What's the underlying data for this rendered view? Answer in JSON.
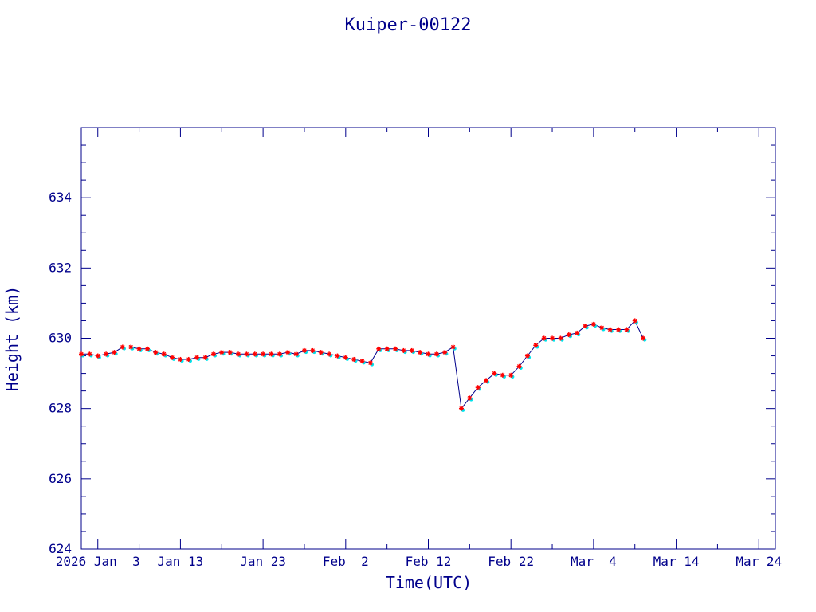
{
  "chart_data": {
    "type": "line",
    "title": "Kuiper-00122",
    "xlabel": "Time(UTC)",
    "ylabel": "Height (km)",
    "ylim": [
      624,
      636
    ],
    "yticks": [
      624,
      626,
      628,
      630,
      632,
      634
    ],
    "xlim": [
      "2026-01-01",
      "2026-03-26"
    ],
    "xtick_values": [
      "2026-01-03",
      "2026-01-13",
      "2026-01-23",
      "2026-02-02",
      "2026-02-12",
      "2026-02-22",
      "2026-03-04",
      "2026-03-14",
      "2026-03-24"
    ],
    "xtick_labels": [
      "2026 Jan  3",
      "Jan 13",
      "Jan 23",
      "Feb  2",
      "Feb 12",
      "Feb 22",
      "Mar  4",
      "Mar 14",
      "Mar 24"
    ],
    "colors": {
      "axis": "#00008b",
      "line": "#00008b",
      "marker": "#ff0000",
      "secondary_marker": "#00e5ee"
    },
    "series": [
      {
        "x": [
          "2026-01-01",
          "2026-01-02",
          "2026-01-03",
          "2026-01-04",
          "2026-01-05",
          "2026-01-06",
          "2026-01-07",
          "2026-01-08",
          "2026-01-09",
          "2026-01-10",
          "2026-01-11",
          "2026-01-12",
          "2026-01-13",
          "2026-01-14",
          "2026-01-15",
          "2026-01-16",
          "2026-01-17",
          "2026-01-18",
          "2026-01-19",
          "2026-01-20",
          "2026-01-21",
          "2026-01-22",
          "2026-01-23",
          "2026-01-24",
          "2026-01-25",
          "2026-01-26",
          "2026-01-27",
          "2026-01-28",
          "2026-01-29",
          "2026-01-30",
          "2026-01-31",
          "2026-02-01",
          "2026-02-02",
          "2026-02-03",
          "2026-02-04",
          "2026-02-05",
          "2026-02-06",
          "2026-02-07",
          "2026-02-08",
          "2026-02-09",
          "2026-02-10",
          "2026-02-11",
          "2026-02-12",
          "2026-02-13",
          "2026-02-14",
          "2026-02-15",
          "2026-02-16",
          "2026-02-17",
          "2026-02-18",
          "2026-02-19",
          "2026-02-20",
          "2026-02-21",
          "2026-02-22",
          "2026-02-23",
          "2026-02-24",
          "2026-02-25",
          "2026-02-26",
          "2026-02-27",
          "2026-02-28",
          "2026-03-01",
          "2026-03-02",
          "2026-03-03",
          "2026-03-04",
          "2026-03-05",
          "2026-03-06",
          "2026-03-07",
          "2026-03-08",
          "2026-03-09",
          "2026-03-10"
        ],
        "y": [
          629.55,
          629.55,
          629.5,
          629.55,
          629.6,
          629.75,
          629.75,
          629.7,
          629.7,
          629.6,
          629.55,
          629.45,
          629.4,
          629.4,
          629.45,
          629.45,
          629.55,
          629.6,
          629.6,
          629.55,
          629.55,
          629.55,
          629.55,
          629.55,
          629.55,
          629.6,
          629.55,
          629.65,
          629.65,
          629.6,
          629.55,
          629.5,
          629.45,
          629.4,
          629.35,
          629.3,
          629.7,
          629.7,
          629.7,
          629.65,
          629.65,
          629.6,
          629.55,
          629.55,
          629.6,
          629.75,
          628.0,
          628.3,
          628.6,
          628.8,
          629.0,
          628.95,
          628.95,
          629.2,
          629.5,
          629.8,
          630.0,
          630.0,
          630.0,
          630.1,
          630.15,
          630.35,
          630.4,
          630.3,
          630.25,
          630.25,
          630.25,
          630.5,
          630.0
        ]
      }
    ]
  }
}
